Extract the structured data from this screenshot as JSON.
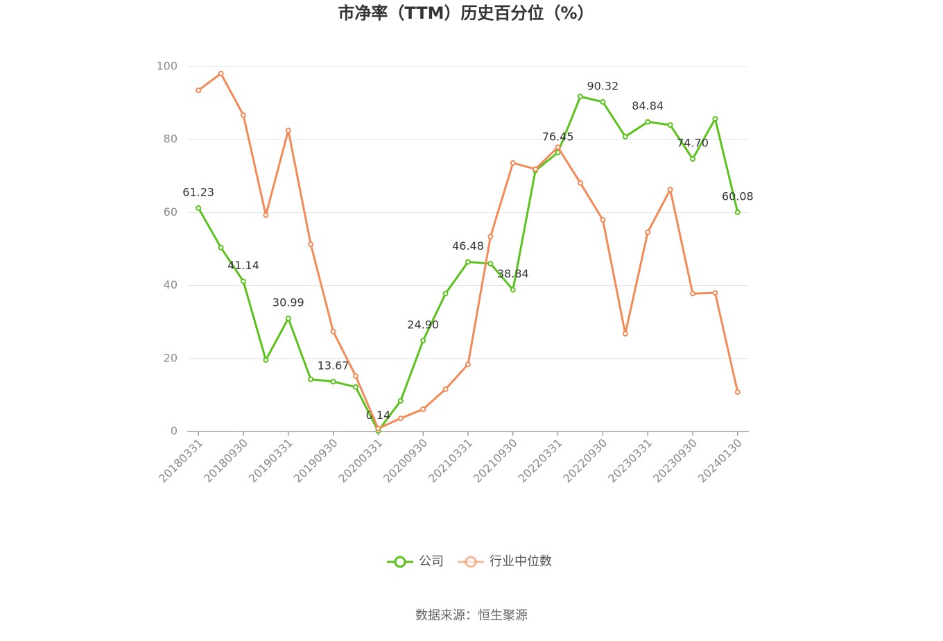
{
  "chart_data": {
    "type": "line",
    "title": "市净率（TTM）历史百分位（%）",
    "source": "数据来源：恒生聚源",
    "categories": [
      "20180331",
      null,
      "20180930",
      null,
      "20190331",
      null,
      "20190930",
      null,
      "20200331",
      null,
      "20200930",
      null,
      "20210331",
      null,
      "20210930",
      null,
      "20220331",
      null,
      "20220930",
      null,
      "20230331",
      null,
      "20230930",
      null,
      "20240130"
    ],
    "series": [
      {
        "name": "公司",
        "color": "#5ac11d",
        "values": [
          61.23,
          50.4,
          41.14,
          19.6,
          30.99,
          14.3,
          13.67,
          12.2,
          0.14,
          8.4,
          24.9,
          37.8,
          46.48,
          46.0,
          38.84,
          71.5,
          76.45,
          91.8,
          90.32,
          80.8,
          84.84,
          84.0,
          74.7,
          85.7,
          60.08
        ],
        "value_labels": [
          "61.23",
          null,
          "41.14",
          null,
          "30.99",
          null,
          "13.67",
          null,
          "0.14",
          null,
          "24.90",
          null,
          "46.48",
          null,
          "38.84",
          null,
          "76.45",
          null,
          "90.32",
          null,
          "84.84",
          null,
          "74.70",
          null,
          "60.08"
        ]
      },
      {
        "name": "行业中位数",
        "color": "#f28a57",
        "values": [
          93.5,
          98.1,
          86.7,
          59.3,
          82.5,
          51.3,
          27.4,
          15.2,
          0.8,
          3.6,
          6.1,
          11.6,
          18.4,
          53.4,
          73.6,
          71.9,
          77.9,
          68.1,
          58.0,
          26.8,
          54.6,
          66.3,
          37.8,
          38.0,
          10.8
        ]
      }
    ],
    "ylim": [
      0,
      100
    ],
    "yticks": [
      0,
      20,
      40,
      60,
      80,
      100
    ],
    "grid": true
  }
}
